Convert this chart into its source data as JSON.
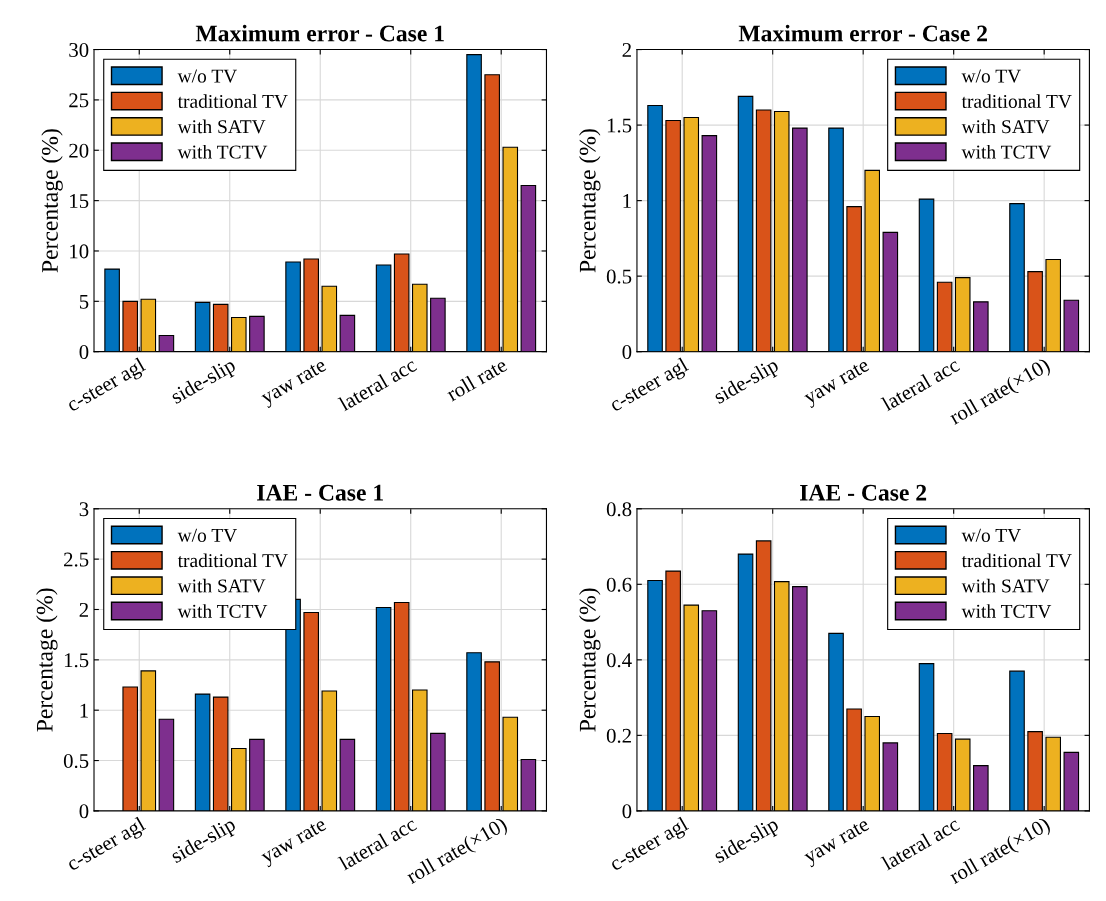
{
  "chart_data": [
    {
      "type": "bar",
      "title": "Maximum error - Case 1",
      "ylabel": "Percentage (%)",
      "categories": [
        "c-steer agl",
        "side-slip",
        "yaw rate",
        "lateral acc",
        "roll rate"
      ],
      "ylim": [
        0,
        30
      ],
      "yticks": [
        0,
        5,
        10,
        15,
        20,
        25,
        30
      ],
      "grid": true,
      "legend": "top left",
      "series": [
        {
          "name": "w/o TV",
          "color": "#0072bd",
          "values": [
            8.2,
            4.9,
            8.9,
            8.6,
            29.5
          ]
        },
        {
          "name": "traditional TV",
          "color": "#d95319",
          "values": [
            5.0,
            4.7,
            9.2,
            9.7,
            27.5
          ]
        },
        {
          "name": "with SATV",
          "color": "#edb120",
          "values": [
            5.2,
            3.4,
            6.5,
            6.7,
            20.3
          ]
        },
        {
          "name": "with TCTV",
          "color": "#7e2f8e",
          "values": [
            1.6,
            3.5,
            3.6,
            5.3,
            16.5
          ]
        }
      ]
    },
    {
      "type": "bar",
      "title": "Maximum error - Case 2",
      "ylabel": "Percentage (%)",
      "categories": [
        "c-steer agl",
        "side-slip",
        "yaw rate",
        "lateral acc",
        "roll rate(×10)"
      ],
      "ylim": [
        0,
        2
      ],
      "yticks": [
        0,
        0.5,
        1,
        1.5,
        2
      ],
      "grid": true,
      "legend": "top right",
      "series": [
        {
          "name": "w/o TV",
          "color": "#0072bd",
          "values": [
            1.63,
            1.69,
            1.48,
            1.01,
            0.98
          ]
        },
        {
          "name": "traditional TV",
          "color": "#d95319",
          "values": [
            1.53,
            1.6,
            0.96,
            0.46,
            0.53
          ]
        },
        {
          "name": "with SATV",
          "color": "#edb120",
          "values": [
            1.55,
            1.59,
            1.2,
            0.49,
            0.61
          ]
        },
        {
          "name": "with TCTV",
          "color": "#7e2f8e",
          "values": [
            1.43,
            1.48,
            0.79,
            0.33,
            0.34
          ]
        }
      ]
    },
    {
      "type": "bar",
      "title": "IAE - Case 1",
      "ylabel": "Percentage (%)",
      "categories": [
        "c-steer agl",
        "side-slip",
        "yaw rate",
        "lateral acc",
        "roll rate(×10)"
      ],
      "ylim": [
        0,
        3
      ],
      "yticks": [
        0,
        0.5,
        1,
        1.5,
        2,
        2.5,
        3
      ],
      "grid": true,
      "legend": "top left",
      "series": [
        {
          "name": "w/o TV",
          "color": "#0072bd",
          "values": [
            null,
            1.16,
            2.1,
            2.02,
            1.57
          ]
        },
        {
          "name": "traditional TV",
          "color": "#d95319",
          "values": [
            1.23,
            1.13,
            1.97,
            2.07,
            1.48
          ]
        },
        {
          "name": "with SATV",
          "color": "#edb120",
          "values": [
            1.39,
            0.62,
            1.19,
            1.2,
            0.93
          ]
        },
        {
          "name": "with TCTV",
          "color": "#7e2f8e",
          "values": [
            0.91,
            0.71,
            0.71,
            0.77,
            0.51
          ]
        }
      ]
    },
    {
      "type": "bar",
      "title": "IAE - Case 2",
      "ylabel": "Percentage (%)",
      "categories": [
        "c-steer agl",
        "side-slip",
        "yaw rate",
        "lateral acc",
        "roll rate(×10)"
      ],
      "ylim": [
        0,
        0.8
      ],
      "yticks": [
        0,
        0.2,
        0.4,
        0.6,
        0.8
      ],
      "grid": true,
      "legend": "top right",
      "series": [
        {
          "name": "w/o TV",
          "color": "#0072bd",
          "values": [
            0.61,
            0.68,
            0.47,
            0.39,
            0.37
          ]
        },
        {
          "name": "traditional TV",
          "color": "#d95319",
          "values": [
            0.635,
            0.715,
            0.27,
            0.205,
            0.21
          ]
        },
        {
          "name": "with SATV",
          "color": "#edb120",
          "values": [
            0.545,
            0.607,
            0.25,
            0.19,
            0.195
          ]
        },
        {
          "name": "with TCTV",
          "color": "#7e2f8e",
          "values": [
            0.53,
            0.594,
            0.18,
            0.12,
            0.155
          ]
        }
      ]
    }
  ]
}
